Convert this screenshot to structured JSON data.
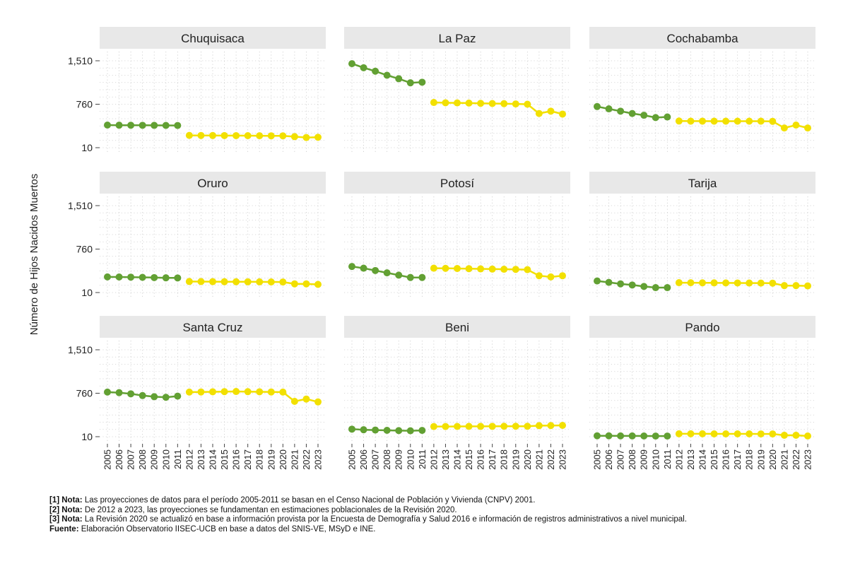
{
  "chart_data": {
    "type": "line",
    "ylabel": "Número de Hijos Nacidos Muertos",
    "ylim": [
      10,
      1510
    ],
    "yticks": [
      10,
      760,
      1510
    ],
    "ytick_labels": [
      "10",
      "760",
      "1,510"
    ],
    "x": [
      2005,
      2006,
      2007,
      2008,
      2009,
      2010,
      2011,
      2012,
      2013,
      2014,
      2015,
      2016,
      2017,
      2018,
      2019,
      2020,
      2021,
      2022,
      2023
    ],
    "xtick_labels": [
      "2005",
      "2006",
      "2007",
      "2008",
      "2009",
      "2010",
      "2011",
      "2012",
      "2013",
      "2014",
      "2015",
      "2016",
      "2017",
      "2018",
      "2019",
      "2020",
      "2021",
      "2022",
      "2023"
    ],
    "grid": true,
    "colors": {
      "cnpv2001": "#62a033",
      "revision2020": "#f2e000"
    },
    "panels": [
      {
        "name": "Chuquisaca",
        "values": [
          400,
          398,
          397,
          396,
          395,
          394,
          393,
          222,
          221,
          220,
          219,
          218,
          217,
          216,
          215,
          214,
          200,
          186,
          190
        ]
      },
      {
        "name": "La Paz",
        "values": [
          1460,
          1390,
          1330,
          1260,
          1200,
          1130,
          1140,
          790,
          785,
          783,
          780,
          775,
          772,
          770,
          765,
          760,
          600,
          640,
          590
        ]
      },
      {
        "name": "Cochabamba",
        "values": [
          720,
          680,
          640,
          600,
          570,
          530,
          540,
          470,
          468,
          468,
          467,
          467,
          467,
          467,
          467,
          465,
          350,
          400,
          350
        ]
      },
      {
        "name": "Oruro",
        "values": [
          280,
          278,
          276,
          272,
          268,
          264,
          262,
          200,
          199,
          198,
          197,
          196,
          195,
          194,
          193,
          192,
          160,
          160,
          150
        ]
      },
      {
        "name": "Potosí",
        "values": [
          460,
          430,
          390,
          350,
          310,
          270,
          270,
          430,
          428,
          425,
          422,
          418,
          415,
          412,
          410,
          405,
          300,
          280,
          300
        ]
      },
      {
        "name": "Tarija",
        "values": [
          210,
          185,
          160,
          140,
          115,
          95,
          95,
          180,
          179,
          178,
          177,
          176,
          175,
          174,
          173,
          172,
          130,
          130,
          125
        ]
      },
      {
        "name": "Santa Cruz",
        "values": [
          780,
          770,
          750,
          720,
          700,
          690,
          710,
          780,
          782,
          785,
          788,
          790,
          787,
          785,
          782,
          780,
          620,
          660,
          610
        ]
      },
      {
        "name": "Beni",
        "values": [
          140,
          130,
          125,
          120,
          115,
          112,
          118,
          185,
          186,
          187,
          188,
          188,
          189,
          190,
          190,
          190,
          200,
          202,
          205
        ]
      },
      {
        "name": "Pando",
        "values": [
          25,
          25,
          24,
          23,
          22,
          21,
          21,
          60,
          60,
          60,
          59,
          59,
          59,
          59,
          58,
          58,
          35,
          35,
          22
        ]
      }
    ]
  },
  "notes": [
    {
      "label": "[1] Nota:",
      "text": " Las proyecciones de datos para el período 2005-2011 se basan en el Censo Nacional de Población y Vivienda (CNPV) 2001."
    },
    {
      "label": "[2] Nota:",
      "text": " De 2012 a 2023, las proyecciones se fundamentan en estimaciones poblacionales de la Revisión 2020."
    },
    {
      "label": "[3] Nota:",
      "text": " La Revisión 2020 se actualizó en base a información provista por la Encuesta de Demografía y Salud 2016 e información de registros administrativos a nivel municipal."
    },
    {
      "label": "Fuente:",
      "text": " Elaboración Observatorio IISEC-UCB en base a datos del SNIS-VE, MSyD e INE."
    }
  ]
}
